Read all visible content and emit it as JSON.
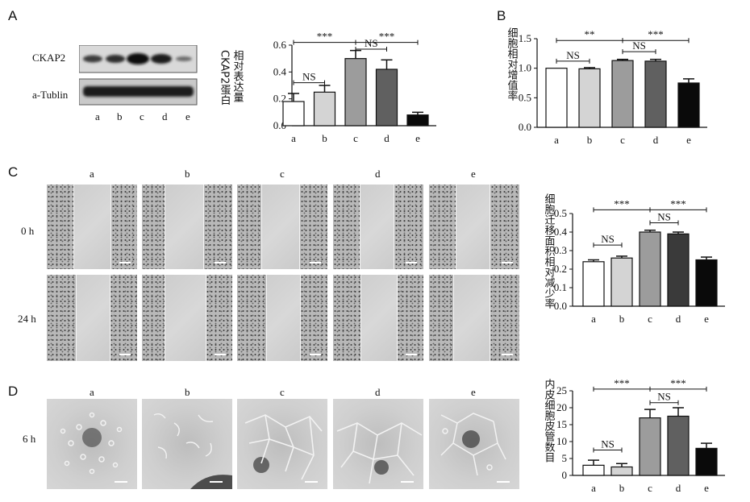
{
  "panels": {
    "A": "A",
    "B": "B",
    "C": "C",
    "D": "D"
  },
  "western_blot": {
    "rows": [
      "CKAP2",
      "a-Tublin"
    ],
    "lanes": [
      "a",
      "b",
      "c",
      "d",
      "e"
    ]
  },
  "wound": {
    "columns": [
      "a",
      "b",
      "c",
      "d",
      "e"
    ],
    "rows": [
      "0 h",
      "24 h"
    ]
  },
  "tube": {
    "columns": [
      "a",
      "b",
      "c",
      "d",
      "e"
    ],
    "row": "6 h"
  },
  "chart_data": [
    {
      "panel": "A",
      "type": "bar",
      "categories": [
        "a",
        "b",
        "c",
        "d",
        "e"
      ],
      "values": [
        0.18,
        0.25,
        0.5,
        0.42,
        0.08
      ],
      "errors": [
        0.06,
        0.05,
        0.06,
        0.07,
        0.02
      ],
      "ylabel_lines": [
        "CKAP2蛋白",
        "相对表达量"
      ],
      "ylim": [
        0,
        0.6
      ],
      "yticks": [
        "0.0",
        "0.2",
        "0.4",
        "0.6"
      ],
      "colors": [
        "#ffffff",
        "#d4d4d4",
        "#9c9c9c",
        "#606060",
        "#0a0a0a"
      ],
      "annotations": [
        {
          "from": "a",
          "to": "c",
          "label": "***",
          "level": 0.62
        },
        {
          "from": "c",
          "to": "e",
          "label": "***",
          "level": 0.62
        },
        {
          "from": "c",
          "to": "d",
          "label": "NS",
          "level": 0.57
        },
        {
          "from": "a",
          "to": "b",
          "label": "NS",
          "level": 0.32
        }
      ]
    },
    {
      "panel": "B",
      "type": "bar",
      "categories": [
        "a",
        "b",
        "c",
        "d",
        "e"
      ],
      "values": [
        1.0,
        0.99,
        1.13,
        1.12,
        0.75
      ],
      "errors": [
        0.0,
        0.02,
        0.02,
        0.03,
        0.07
      ],
      "ylabel_lines": [
        "细胞相对增值率"
      ],
      "ylim": [
        0,
        1.5
      ],
      "yticks": [
        "0.0",
        "0.5",
        "1.0",
        "1.5"
      ],
      "colors": [
        "#ffffff",
        "#d4d4d4",
        "#9c9c9c",
        "#606060",
        "#0a0a0a"
      ],
      "annotations": [
        {
          "from": "a",
          "to": "c",
          "label": "**",
          "level": 1.47
        },
        {
          "from": "c",
          "to": "e",
          "label": "***",
          "level": 1.47
        },
        {
          "from": "c",
          "to": "d",
          "label": "NS",
          "level": 1.28
        },
        {
          "from": "a",
          "to": "b",
          "label": "NS",
          "level": 1.12
        }
      ]
    },
    {
      "panel": "C",
      "type": "bar",
      "categories": [
        "a",
        "b",
        "c",
        "d",
        "e"
      ],
      "values": [
        0.24,
        0.26,
        0.4,
        0.39,
        0.25
      ],
      "errors": [
        0.01,
        0.01,
        0.01,
        0.01,
        0.015
      ],
      "ylabel_lines": [
        "细胞迁移面积相对减少率"
      ],
      "ylim": [
        0,
        0.5
      ],
      "yticks": [
        "0.0",
        "0.1",
        "0.2",
        "0.3",
        "0.4",
        "0.5"
      ],
      "colors": [
        "#ffffff",
        "#d4d4d4",
        "#9c9c9c",
        "#3a3a3a",
        "#0a0a0a"
      ],
      "annotations": [
        {
          "from": "a",
          "to": "c",
          "label": "***",
          "level": 0.52
        },
        {
          "from": "c",
          "to": "e",
          "label": "***",
          "level": 0.52
        },
        {
          "from": "c",
          "to": "d",
          "label": "NS",
          "level": 0.45
        },
        {
          "from": "a",
          "to": "b",
          "label": "NS",
          "level": 0.33
        }
      ]
    },
    {
      "panel": "D",
      "type": "bar",
      "categories": [
        "a",
        "b",
        "c",
        "d",
        "e"
      ],
      "values": [
        3,
        2.5,
        17,
        17.5,
        8
      ],
      "errors": [
        1.5,
        1.0,
        2.5,
        2.5,
        1.5
      ],
      "ylabel_lines": [
        "内皮细胞皮管数目"
      ],
      "ylim": [
        0,
        25
      ],
      "yticks": [
        "0",
        "5",
        "10",
        "15",
        "20",
        "25"
      ],
      "colors": [
        "#ffffff",
        "#d4d4d4",
        "#9c9c9c",
        "#606060",
        "#0a0a0a"
      ],
      "annotations": [
        {
          "from": "a",
          "to": "c",
          "label": "***",
          "level": 25.5
        },
        {
          "from": "c",
          "to": "e",
          "label": "***",
          "level": 25.5
        },
        {
          "from": "c",
          "to": "d",
          "label": "NS",
          "level": 21.5
        },
        {
          "from": "a",
          "to": "b",
          "label": "NS",
          "level": 7.5
        }
      ]
    }
  ]
}
